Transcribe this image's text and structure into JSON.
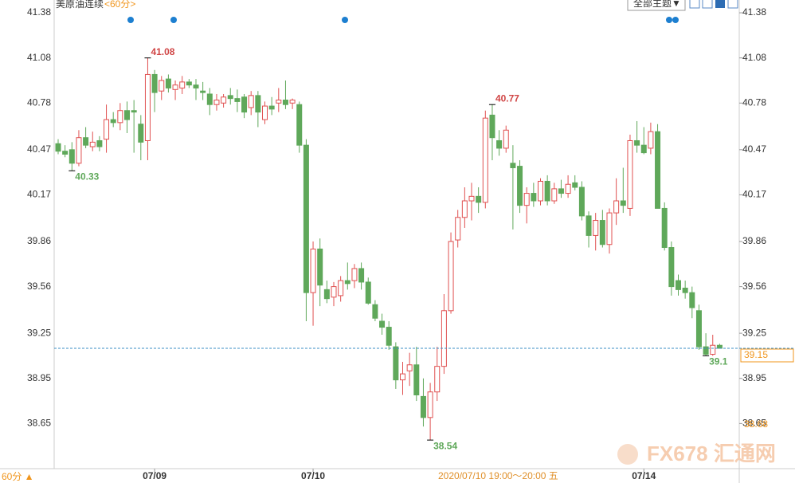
{
  "chart_data": {
    "type": "candlestick",
    "title": "美原油连续",
    "period_label": "<60分>",
    "theme_button": "全部主题▼",
    "period_switch": "60分 ▲",
    "time_caption": "2020/07/10 19:00～20:00 五",
    "watermark": "FX678 汇通网",
    "up_color": "#e05050",
    "down_color": "#5fa85a",
    "categories": [
      null,
      null,
      null,
      null,
      null,
      null,
      null,
      null,
      null,
      null,
      null,
      null,
      null,
      null,
      "07/09",
      null,
      null,
      null,
      null,
      null,
      null,
      null,
      null,
      null,
      null,
      null,
      null,
      null,
      null,
      null,
      null,
      null,
      null,
      null,
      null,
      null,
      null,
      "07/10",
      null,
      null,
      null,
      null,
      null,
      null,
      null,
      null,
      null,
      null,
      null,
      null,
      null,
      null,
      null,
      null,
      null,
      null,
      null,
      null,
      null,
      null,
      null,
      null,
      null,
      null,
      null,
      null,
      null,
      null,
      null,
      null,
      null,
      null,
      null,
      null,
      null,
      null,
      null,
      null,
      null,
      null,
      null,
      null,
      null,
      null,
      null,
      "07/14",
      null,
      null,
      null,
      null,
      null,
      null,
      null,
      null,
      null,
      null,
      null
    ],
    "open": [
      40.51,
      40.46,
      40.47,
      40.38,
      40.55,
      40.49,
      40.53,
      40.54,
      40.67,
      40.65,
      40.73,
      40.73,
      40.64,
      40.53,
      40.97,
      40.86,
      40.94,
      40.87,
      40.88,
      40.92,
      40.9,
      40.86,
      40.84,
      40.77,
      40.78,
      40.83,
      40.81,
      40.82,
      40.75,
      40.83,
      40.67,
      40.76,
      40.78,
      40.8,
      40.78,
      40.77,
      40.5,
      39.52,
      39.81,
      39.54,
      39.49,
      39.5,
      39.6,
      39.6,
      39.68,
      39.59,
      39.44,
      39.33,
      39.29,
      39.16,
      38.94,
      39.0,
      39.04,
      38.83,
      38.69,
      38.86,
      39.03,
      39.4,
      39.87,
      40.02,
      40.13,
      40.16,
      40.12,
      40.7,
      40.53,
      40.48,
      40.38,
      40.36,
      40.1,
      40.18,
      40.13,
      40.26,
      40.13,
      40.21,
      40.18,
      40.25,
      40.22,
      40.03,
      39.9,
      40.0,
      39.84,
      40.05,
      40.13,
      40.08,
      40.53,
      40.5,
      40.48,
      40.59,
      40.08,
      39.82,
      39.6,
      39.55,
      39.52,
      39.4,
      39.16,
      39.11,
      39.17
    ],
    "high": [
      40.54,
      40.5,
      40.52,
      40.6,
      40.62,
      40.59,
      40.56,
      40.77,
      40.72,
      40.78,
      40.79,
      40.8,
      40.7,
      41.08,
      41.0,
      40.96,
      40.97,
      40.93,
      40.96,
      40.94,
      40.94,
      40.92,
      40.88,
      40.84,
      40.84,
      40.88,
      40.87,
      40.84,
      40.86,
      40.86,
      40.79,
      40.82,
      40.88,
      40.93,
      40.81,
      40.79,
      40.54,
      39.86,
      39.88,
      39.6,
      39.59,
      39.63,
      39.72,
      39.71,
      39.72,
      39.62,
      39.47,
      39.38,
      39.33,
      39.19,
      39.06,
      39.12,
      39.16,
      38.95,
      38.92,
      39.16,
      39.51,
      39.92,
      40.07,
      40.22,
      40.25,
      40.22,
      40.73,
      40.77,
      40.6,
      40.63,
      40.5,
      40.4,
      40.22,
      40.25,
      40.28,
      40.3,
      40.25,
      40.27,
      40.3,
      40.3,
      40.26,
      40.06,
      40.05,
      40.07,
      40.08,
      40.28,
      40.35,
      40.57,
      40.66,
      40.62,
      40.65,
      40.64,
      40.12,
      39.86,
      39.64,
      39.6,
      39.56,
      39.44,
      39.25,
      39.24,
      39.18
    ],
    "low": [
      40.44,
      40.42,
      40.33,
      40.36,
      40.48,
      40.46,
      40.46,
      40.45,
      40.62,
      40.6,
      40.58,
      40.45,
      40.4,
      40.4,
      40.72,
      40.8,
      40.85,
      40.8,
      40.84,
      40.88,
      40.8,
      40.8,
      40.7,
      40.73,
      40.75,
      40.77,
      40.72,
      40.68,
      40.7,
      40.62,
      40.64,
      40.7,
      40.72,
      40.74,
      40.74,
      40.45,
      39.33,
      39.3,
      39.43,
      39.45,
      39.43,
      39.46,
      39.54,
      39.55,
      39.54,
      39.44,
      39.33,
      39.24,
      39.14,
      38.88,
      38.84,
      38.9,
      38.8,
      38.63,
      38.54,
      38.8,
      38.98,
      39.38,
      39.82,
      39.95,
      40.0,
      40.05,
      40.08,
      40.4,
      40.43,
      40.45,
      39.94,
      40.05,
      39.98,
      40.09,
      40.1,
      40.1,
      40.11,
      40.15,
      40.15,
      40.2,
      40.0,
      39.82,
      39.8,
      39.82,
      39.78,
      39.97,
      40.05,
      40.03,
      40.45,
      40.44,
      40.44,
      40.08,
      39.8,
      39.5,
      39.5,
      39.48,
      39.35,
      39.14,
      39.1,
      39.1,
      39.15
    ],
    "close": [
      40.46,
      40.44,
      40.38,
      40.55,
      40.5,
      40.52,
      40.49,
      40.67,
      40.65,
      40.73,
      40.67,
      40.72,
      40.52,
      40.97,
      40.85,
      40.93,
      40.88,
      40.9,
      40.92,
      40.9,
      40.88,
      40.85,
      40.77,
      40.8,
      40.82,
      40.81,
      40.79,
      40.72,
      40.83,
      40.72,
      40.76,
      40.74,
      40.8,
      40.77,
      40.8,
      40.5,
      39.52,
      39.81,
      39.57,
      39.48,
      39.56,
      39.6,
      39.58,
      39.68,
      39.59,
      39.45,
      39.35,
      39.29,
      39.17,
      38.94,
      38.98,
      39.04,
      38.84,
      38.69,
      38.86,
      39.03,
      39.4,
      39.86,
      40.02,
      40.13,
      40.16,
      40.12,
      40.68,
      40.55,
      40.48,
      40.6,
      40.35,
      40.1,
      40.18,
      40.13,
      40.26,
      40.13,
      40.21,
      40.18,
      40.24,
      40.22,
      40.03,
      39.9,
      40.0,
      39.84,
      40.05,
      40.13,
      40.1,
      40.53,
      40.5,
      40.45,
      40.59,
      40.08,
      39.82,
      39.56,
      39.54,
      39.52,
      39.42,
      39.16,
      39.11,
      39.17,
      39.15
    ],
    "lower_marker": 38.68,
    "ylim": [
      38.35,
      41.465
    ],
    "yticks": [
      41.38,
      41.08,
      40.78,
      40.47,
      40.17,
      39.86,
      39.56,
      39.25,
      38.95,
      38.65
    ]
  }
}
